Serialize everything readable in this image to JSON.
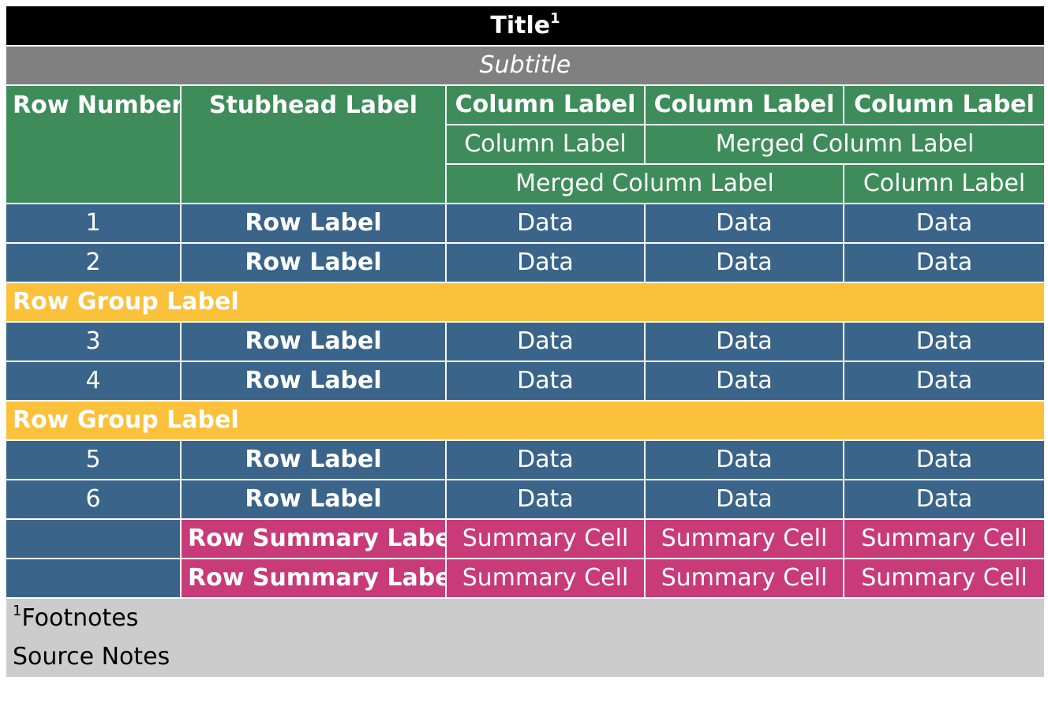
{
  "title": {
    "text": "Title",
    "footnote_mark": "1"
  },
  "subtitle": "Subtitle",
  "header": {
    "row_number": "Row Number",
    "stubhead": "Stubhead Label",
    "level1": [
      "Column Label",
      "Column Label",
      "Column Label"
    ],
    "level2": [
      "Column Label",
      "Merged Column Label"
    ],
    "level3": [
      "Merged Column Label",
      "Column Label"
    ]
  },
  "rows": [
    {
      "num": "1",
      "label": "Row Label",
      "cells": [
        "Data",
        "Data",
        "Data"
      ]
    },
    {
      "num": "2",
      "label": "Row Label",
      "cells": [
        "Data",
        "Data",
        "Data"
      ]
    },
    {
      "num": "3",
      "label": "Row Label",
      "cells": [
        "Data",
        "Data",
        "Data"
      ]
    },
    {
      "num": "4",
      "label": "Row Label",
      "cells": [
        "Data",
        "Data",
        "Data"
      ]
    },
    {
      "num": "5",
      "label": "Row Label",
      "cells": [
        "Data",
        "Data",
        "Data"
      ]
    },
    {
      "num": "6",
      "label": "Row Label",
      "cells": [
        "Data",
        "Data",
        "Data"
      ]
    }
  ],
  "groups": [
    "Row Group Label",
    "Row Group Label"
  ],
  "summary": [
    {
      "label": "Row Summary Label",
      "cells": [
        "Summary Cell",
        "Summary Cell",
        "Summary Cell"
      ]
    },
    {
      "label": "Row Summary Label",
      "cells": [
        "Summary Cell",
        "Summary Cell",
        "Summary Cell"
      ]
    }
  ],
  "footnotes": {
    "mark": "1",
    "text": "Footnotes"
  },
  "source_notes": "Source Notes",
  "colors": {
    "title_bg": "#000000",
    "subtitle_bg": "#808080",
    "header_bg": "#3e8c5a",
    "body_bg": "#3a6489",
    "group_bg": "#fbc13b",
    "summary_bg": "#c83a78",
    "notes_bg": "#cccccc"
  }
}
